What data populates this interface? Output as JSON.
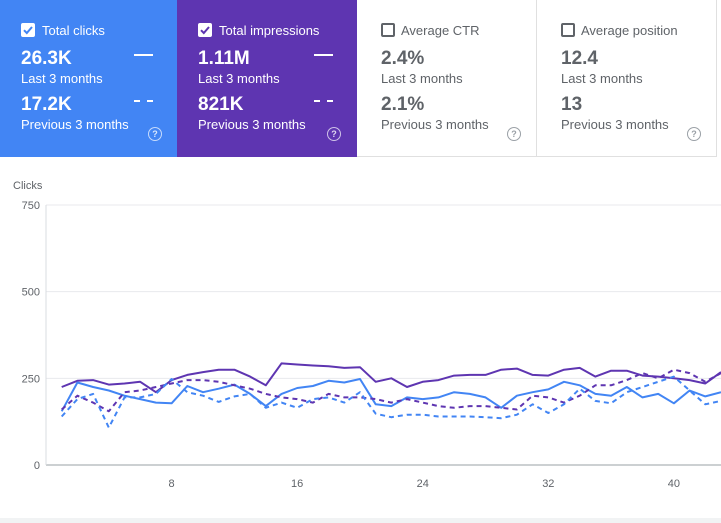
{
  "metrics": [
    {
      "label": "Total clicks",
      "checked": true,
      "current_value": "26.3K",
      "current_period": "Last 3 months",
      "previous_value": "17.2K",
      "previous_period": "Previous 3 months",
      "color": "#4285f4"
    },
    {
      "label": "Total impressions",
      "checked": true,
      "current_value": "1.11M",
      "current_period": "Last 3 months",
      "previous_value": "821K",
      "previous_period": "Previous 3 months",
      "color": "#5e35b1"
    },
    {
      "label": "Average CTR",
      "checked": false,
      "current_value": "2.4%",
      "current_period": "Last 3 months",
      "previous_value": "2.1%",
      "previous_period": "Previous 3 months"
    },
    {
      "label": "Average position",
      "checked": false,
      "current_value": "12.4",
      "current_period": "Last 3 months",
      "previous_value": "13",
      "previous_period": "Previous 3 months"
    }
  ],
  "help_glyph": "?",
  "chart_data": {
    "type": "line",
    "ylabel": "Clicks",
    "ylim": [
      0,
      750
    ],
    "yticks": [
      0,
      250,
      500,
      750
    ],
    "xlim": [
      0,
      43
    ],
    "xticks": [
      8,
      16,
      24,
      32,
      40
    ],
    "grid": true,
    "x": [
      1,
      2,
      3,
      4,
      5,
      6,
      7,
      8,
      9,
      10,
      11,
      12,
      13,
      14,
      15,
      16,
      17,
      18,
      19,
      20,
      21,
      22,
      23,
      24,
      25,
      26,
      27,
      28,
      29,
      30,
      31,
      32,
      33,
      34,
      35,
      36,
      37,
      38,
      39,
      40,
      41,
      42,
      43
    ],
    "series": [
      {
        "name": "Total impressions (Last 3 months)",
        "color": "#5e35b1",
        "dash": false,
        "values": [
          225,
          243,
          245,
          232,
          235,
          240,
          210,
          245,
          260,
          268,
          275,
          275,
          255,
          230,
          293,
          290,
          287,
          285,
          280,
          282,
          240,
          250,
          225,
          240,
          245,
          258,
          260,
          260,
          275,
          278,
          260,
          258,
          275,
          280,
          255,
          272,
          272,
          258,
          255,
          250,
          245,
          235,
          268
        ]
      },
      {
        "name": "Total clicks (Last 3 months)",
        "color": "#4285f4",
        "dash": false,
        "values": [
          155,
          238,
          225,
          215,
          200,
          190,
          180,
          178,
          228,
          210,
          220,
          232,
          205,
          170,
          205,
          222,
          228,
          243,
          238,
          248,
          175,
          170,
          195,
          190,
          195,
          210,
          205,
          195,
          165,
          200,
          210,
          218,
          240,
          230,
          205,
          200,
          225,
          195,
          205,
          178,
          215,
          198,
          210
        ]
      },
      {
        "name": "Total impressions (Previous 3 months)",
        "color": "#5e35b1",
        "dash": true,
        "values": [
          160,
          200,
          180,
          155,
          210,
          215,
          225,
          235,
          245,
          245,
          240,
          230,
          220,
          205,
          195,
          190,
          180,
          205,
          195,
          195,
          190,
          180,
          190,
          180,
          170,
          165,
          170,
          170,
          165,
          160,
          200,
          195,
          180,
          200,
          230,
          230,
          245,
          265,
          250,
          275,
          265,
          240,
          265
        ]
      },
      {
        "name": "Total clicks (Previous 3 months)",
        "color": "#4285f4",
        "dash": true,
        "values": [
          140,
          190,
          205,
          108,
          195,
          195,
          205,
          248,
          210,
          200,
          182,
          198,
          205,
          165,
          180,
          165,
          190,
          195,
          180,
          210,
          148,
          138,
          145,
          145,
          140,
          140,
          140,
          138,
          135,
          145,
          175,
          150,
          175,
          220,
          185,
          178,
          210,
          225,
          240,
          255,
          215,
          175,
          185
        ]
      }
    ]
  }
}
